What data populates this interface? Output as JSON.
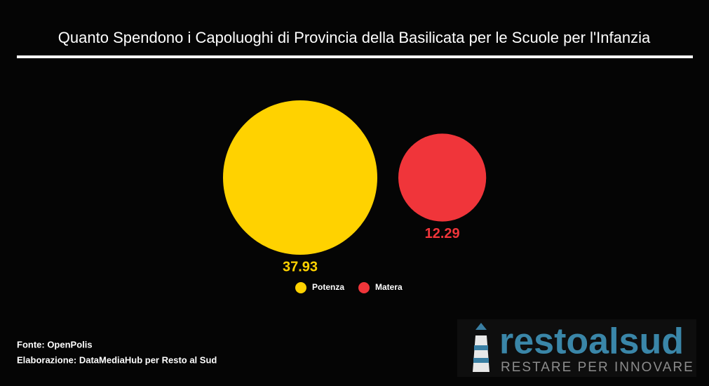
{
  "chart_data": {
    "type": "bubble",
    "title": "Quanto Spendono i Capoluoghi di Provincia della Basilicata per le Scuole per l'Infanzia",
    "categories": [
      "Potenza",
      "Matera"
    ],
    "values": [
      37.93,
      12.29
    ],
    "colors": [
      "#ffd200",
      "#f0353a"
    ]
  },
  "source": "Fonte: OpenPolis",
  "credit": "Elaborazione: DataMediaHub per Resto al Sud",
  "logo": {
    "name": "restoalsud",
    "tagline": "RESTARE PER INNOVARE"
  }
}
